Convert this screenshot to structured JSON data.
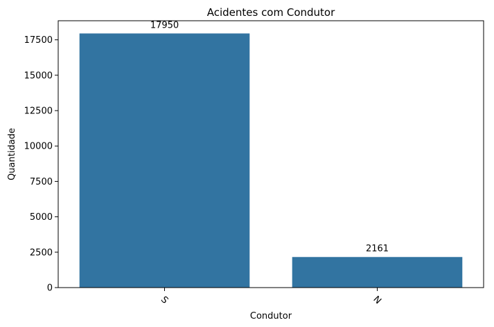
{
  "chart_data": {
    "type": "bar",
    "title": "Acidentes com Condutor",
    "xlabel": "Condutor",
    "ylabel": "Quantidade",
    "categories": [
      "S",
      "N"
    ],
    "values": [
      17950,
      2161
    ],
    "data_labels": [
      "17950",
      "2161"
    ],
    "ylim": [
      0,
      18848
    ],
    "yticks": [
      0,
      2500,
      5000,
      7500,
      10000,
      12500,
      15000,
      17500
    ],
    "ytick_labels": [
      "0",
      "2500",
      "5000",
      "7500",
      "10000",
      "12500",
      "15000",
      "17500"
    ],
    "xtick_rotation": 45,
    "bar_color": "#3274a1",
    "grid": false,
    "legend": "none"
  }
}
